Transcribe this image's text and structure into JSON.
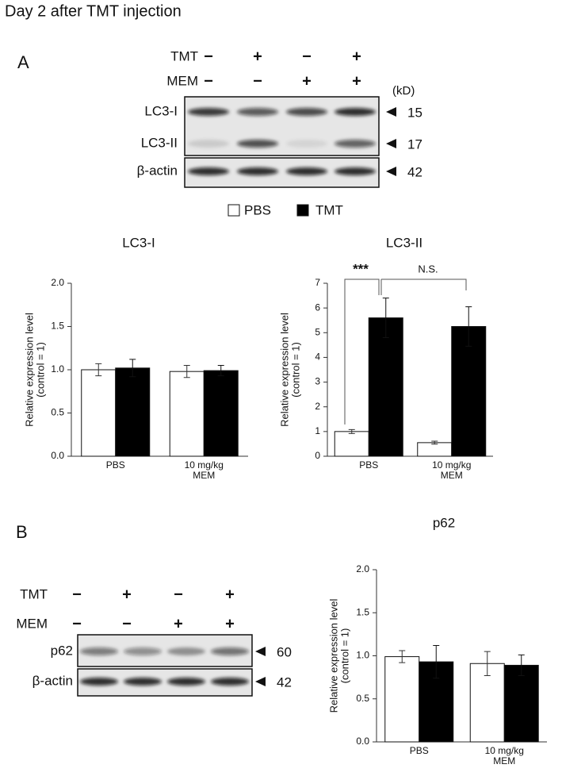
{
  "title": "Day 2 after TMT injection",
  "panel_a": {
    "label": "A",
    "conditions": [
      {
        "name": "TMT",
        "signs": [
          "−",
          "+",
          "−",
          "+"
        ]
      },
      {
        "name": "MEM",
        "signs": [
          "−",
          "−",
          "+",
          "+"
        ]
      }
    ],
    "unit": "(kD)",
    "bands": [
      {
        "name": "LC3-I",
        "kd": 15
      },
      {
        "name": "LC3-II",
        "kd": 17
      },
      {
        "name": "β-actin",
        "kd": 42
      }
    ]
  },
  "panel_b": {
    "label": "B",
    "conditions": [
      {
        "name": "TMT",
        "signs": [
          "−",
          "+",
          "−",
          "+"
        ]
      },
      {
        "name": "MEM",
        "signs": [
          "−",
          "−",
          "+",
          "+"
        ]
      }
    ],
    "bands": [
      {
        "name": "p62",
        "kd": 60
      },
      {
        "name": "β-actin",
        "kd": 42
      }
    ]
  },
  "chart_data": [
    {
      "type": "bar",
      "title": "LC3-I",
      "ylabel": [
        "Relative expression level",
        "(control = 1)"
      ],
      "categories": [
        "PBS",
        "10 mg/kg MEM"
      ],
      "series": [
        {
          "name": "PBS",
          "color": "#ffffff",
          "values": [
            1.0,
            0.98
          ],
          "errors": [
            0.07,
            0.07
          ]
        },
        {
          "name": "TMT",
          "color": "#000000",
          "values": [
            1.02,
            0.99
          ],
          "errors": [
            0.1,
            0.06
          ]
        }
      ],
      "ylim": [
        0,
        2
      ],
      "yticks": [
        {
          "value": 0,
          "label": "0.0"
        },
        0.5,
        {
          "value": 1,
          "label": "1.0"
        },
        1.5,
        {
          "value": 2,
          "label": "2.0"
        }
      ]
    },
    {
      "type": "bar",
      "title": "LC3-II",
      "ylabel": [
        "Relative expression level",
        "(control = 1)"
      ],
      "categories": [
        "PBS",
        "10 mg/kg MEM"
      ],
      "series": [
        {
          "color": "#ffffff",
          "values": [
            1.0,
            0.55
          ],
          "errors": [
            0.08,
            0.06
          ]
        },
        {
          "color": "#000000",
          "values": [
            5.6,
            5.25
          ],
          "errors": [
            0.8,
            0.8
          ]
        }
      ],
      "ylim": [
        0,
        7
      ],
      "yticks": [
        0,
        1,
        2,
        3,
        4,
        5,
        6,
        7
      ],
      "annotations": [
        "***",
        "N.S."
      ]
    },
    {
      "type": "bar",
      "title": "p62",
      "ylabel": [
        "Relative expression level",
        "(control = 1)"
      ],
      "categories": [
        "PBS",
        "10 mg/kg MEM"
      ],
      "series": [
        {
          "color": "#ffffff",
          "values": [
            0.99,
            0.91
          ],
          "errors": [
            0.07,
            0.14
          ]
        },
        {
          "color": "#000000",
          "values": [
            0.93,
            0.89
          ],
          "errors": [
            0.19,
            0.12
          ]
        }
      ],
      "ylim": [
        0,
        2
      ],
      "yticks": [
        {
          "value": 0,
          "label": "0.0"
        },
        0.5,
        {
          "value": 1,
          "label": "1.0"
        },
        1.5,
        {
          "value": 2,
          "label": "2.0"
        }
      ]
    }
  ]
}
